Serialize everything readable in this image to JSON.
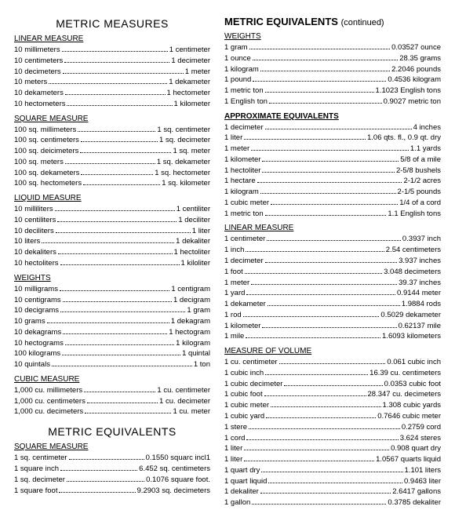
{
  "left_column": {
    "title1": "METRIC MEASURES",
    "sections1": [
      {
        "heading": "LINEAR MEASURE",
        "rows": [
          {
            "l": "10 millimeters",
            "r": "1 centimeter"
          },
          {
            "l": "10 centimeters",
            "r": "1 decimeter"
          },
          {
            "l": "10 decimeters",
            "r": "1 meter"
          },
          {
            "l": "10 meters",
            "r": "1 dekameter"
          },
          {
            "l": "10 dekameters",
            "r": "1 hectometer"
          },
          {
            "l": "10 hectometers",
            "r": "1 kilometer"
          }
        ]
      },
      {
        "heading": "SQUARE MEASURE",
        "rows": [
          {
            "l": "100 sq. millimeters",
            "r": "1 sq. centimeter"
          },
          {
            "l": "100 sq. centimeters",
            "r": "1 sq. decimeter"
          },
          {
            "l": "100 sq. deicimeters",
            "r": "1 sq. meter"
          },
          {
            "l": "100 sq. meters",
            "r": "1 sq. dekameter"
          },
          {
            "l": "100 sq. dekameters",
            "r": "1 sq. hectometer"
          },
          {
            "l": "100 sq. hectometers",
            "r": "1 sq. kilometer"
          }
        ]
      },
      {
        "heading": "LIQUID MEASURE",
        "rows": [
          {
            "l": "10 milliliters",
            "r": "1 centiliter"
          },
          {
            "l": "10 centiliters",
            "r": "1 deciliter"
          },
          {
            "l": "10 deciliters",
            "r": "1 liter"
          },
          {
            "l": "10 liters",
            "r": "1 dekaliter"
          },
          {
            "l": "10 dekaliters",
            "r": "1 hectoliter"
          },
          {
            "l": "10 hectoliters",
            "r": "1 kiloliter"
          }
        ]
      },
      {
        "heading": "WEIGHTS",
        "rows": [
          {
            "l": "10 milligrams",
            "r": "1 centigram"
          },
          {
            "l": "10 centigrams",
            "r": "1 decigram"
          },
          {
            "l": "10 decigrams",
            "r": "1 gram"
          },
          {
            "l": "10 grams",
            "r": "1 dekagram"
          },
          {
            "l": "10 dekagrams",
            "r": "1 hectogram"
          },
          {
            "l": "10 hectograms",
            "r": "1 kilogram"
          },
          {
            "l": "100 kilograms",
            "r": "1 quintal"
          },
          {
            "l": "10 quintals",
            "r": "1 ton"
          }
        ]
      },
      {
        "heading": "CUBIC MEASURE",
        "rows": [
          {
            "l": "1,000 cu. millimeters",
            "r": "1 cu. centimeter"
          },
          {
            "l": "1,000 cu. centimeters",
            "r": "1 cu. decimeter"
          },
          {
            "l": "1,000 cu. decimeters",
            "r": "1 cu. meter"
          }
        ]
      }
    ],
    "title2": "METRIC EQUIVALENTS",
    "sections2": [
      {
        "heading": "SQUARE MEASURE",
        "rows": [
          {
            "l": "1 sq. centimeter",
            "r": "0.1550 squarc incl1"
          },
          {
            "l": "1 square inch",
            "r": "6.452 sq. centimeters"
          },
          {
            "l": "1 sq. decimeter",
            "r": "0.1076 square foot."
          },
          {
            "l": "1 square foot",
            "r": "9.2903 sq. decimeters"
          }
        ]
      }
    ]
  },
  "right_column": {
    "title_bold": "METRIC EQUIVALENTS",
    "title_cont": "(continued)",
    "sections": [
      {
        "heading": "WEIGHTS",
        "bold": false,
        "rows": [
          {
            "l": "1 gram",
            "r": "0.03527 ounce"
          },
          {
            "l": "1 ounce",
            "r": "28.35 grams"
          },
          {
            "l": "1 kilogram",
            "r": "2.2046 pounds"
          },
          {
            "l": "1 pound",
            "r": "0.4536 kilogram"
          },
          {
            "l": "1 metric ton",
            "r": "1.1023 English tons"
          },
          {
            "l": "1 English ton",
            "r": "0.9027 metric ton"
          }
        ]
      },
      {
        "heading": "APPROXIMATE EQUIVALENTS",
        "bold": true,
        "rows": [
          {
            "l": "1 decimeter",
            "r": "4 inches"
          },
          {
            "l": "1 liter",
            "r": "1.06 qts. fl., 0.9 qt. dry"
          },
          {
            "l": "1 meter",
            "r": "1.1 yards"
          },
          {
            "l": "1 kilometer",
            "r": "5/8 of a mile"
          },
          {
            "l": "1 hectoliter",
            "r": "2-5/8 bushels"
          },
          {
            "l": "1 hectare",
            "r": "2-1/2 acres"
          },
          {
            "l": "1 kilogram",
            "r": "2-1/5 pounds"
          },
          {
            "l": "1 cubic meter",
            "r": "1/4 of a cord"
          },
          {
            "l": "1 metric ton",
            "r": "1.1 English tons"
          }
        ]
      },
      {
        "heading": "LINEAR MEASURE",
        "bold": false,
        "rows": [
          {
            "l": "1 centimeter",
            "r": "0.3937 inch"
          },
          {
            "l": "1 inch",
            "r": "2.54 centimeters"
          },
          {
            "l": "1 decimeter",
            "r": "3.937 inches"
          },
          {
            "l": "1 foot",
            "r": "3.048 decimeters"
          },
          {
            "l": "1 meter",
            "r": "39.37 inches"
          },
          {
            "l": "1 yard",
            "r": "0.9144 meter"
          },
          {
            "l": "1 dekameter",
            "r": "1.9884 rods"
          },
          {
            "l": "1 rod",
            "r": "0.5029 dekameter"
          },
          {
            "l": "1 kilometer",
            "r": "0.62137 mile"
          },
          {
            "l": "1 mile",
            "r": "1.6093 kilometers"
          }
        ]
      },
      {
        "heading": "MEASURE OF VOLUME",
        "bold": false,
        "rows": [
          {
            "l": "1 cu. centimeter",
            "r": "0.061 cubic inch"
          },
          {
            "l": "1 cubic inch",
            "r": "16.39 cu. centimeters"
          },
          {
            "l": "1 cubic decimeter",
            "r": "0.0353 cubic foot"
          },
          {
            "l": "1 cubic foot",
            "r": "28.347 cu. decimeters"
          },
          {
            "l": "1 cubic meter",
            "r": "1.308 cubic yards"
          },
          {
            "l": "1 cubic yard",
            "r": "0.7646 cubic meter"
          },
          {
            "l": "1 stere",
            "r": "0.2759 cord"
          },
          {
            "l": "1 cord",
            "r": "3.624 steres"
          },
          {
            "l": "1 liter",
            "r": "0.908 quart dry"
          },
          {
            "l": "1 liter",
            "r": "1.0567 quarts liquid"
          },
          {
            "l": "1 quart dry",
            "r": "1.101 liters"
          },
          {
            "l": "1 quart liquid",
            "r": "0.9463 liter"
          },
          {
            "l": "1 dekaliter",
            "r": "2.6417 gallons"
          },
          {
            "l": "1 gallon",
            "r": "0.3785 dekaliter"
          }
        ]
      }
    ]
  }
}
